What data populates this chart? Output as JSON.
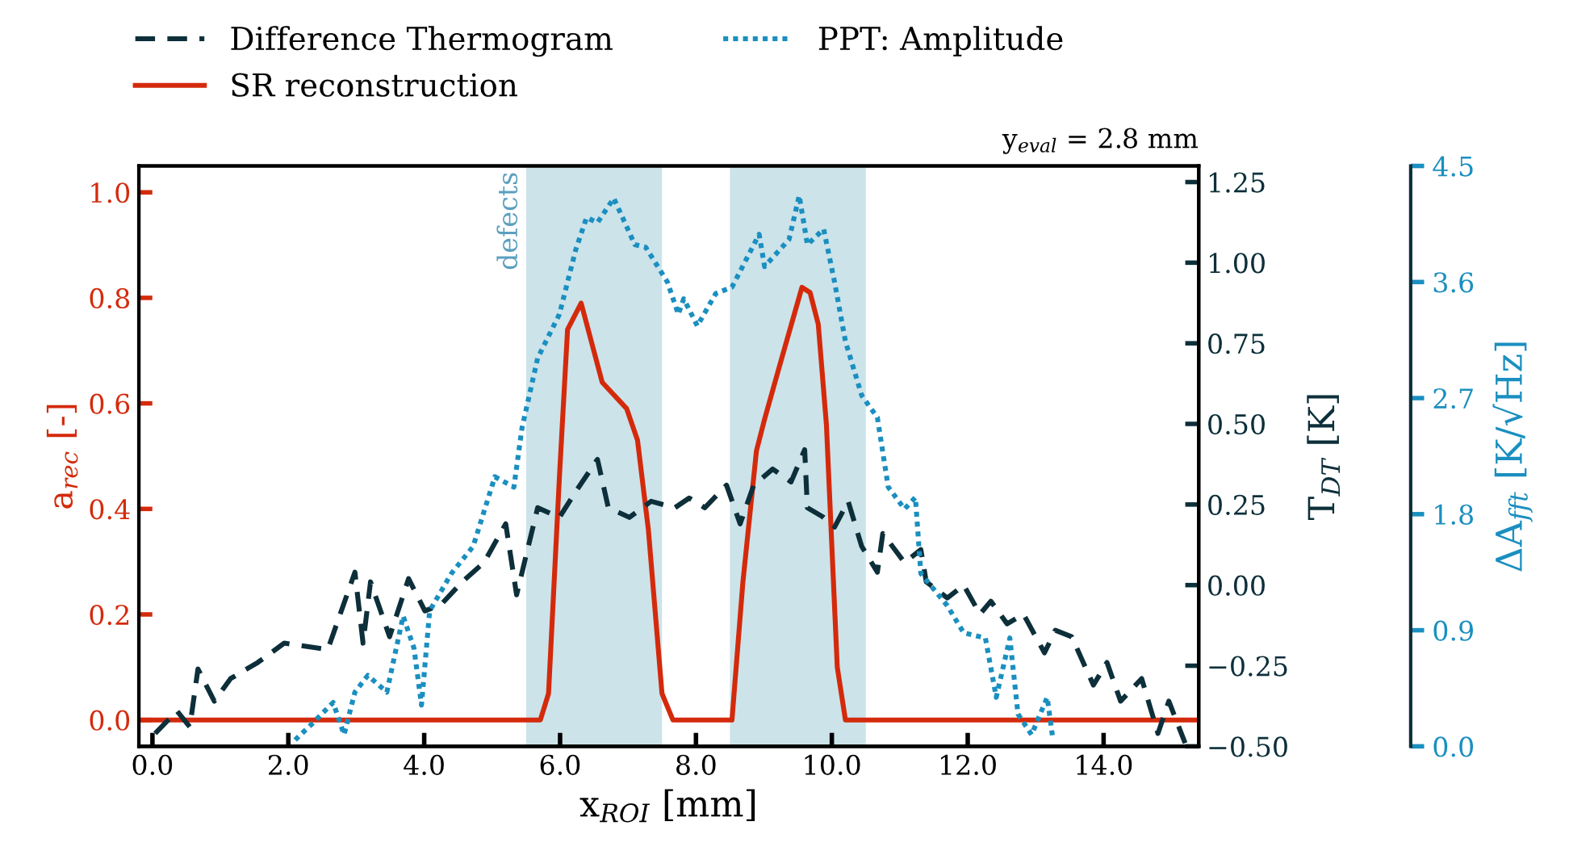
{
  "chart_data": {
    "type": "line",
    "xlabel": "x$_{ROI}$ [mm]",
    "ylabel": "a$_{rec}$ [-]",
    "y2label": "T$_{DT}$ [K]",
    "y3label": "ΔA$_{fft}$ [K/√Hz]",
    "annotations": [
      "y$_{eval}$ = 2.8 mm"
    ],
    "legend": "top",
    "xlim": [
      -0.2,
      15.4
    ],
    "xticks": [
      {
        "value": 0,
        "label": "0.0"
      },
      {
        "value": 2,
        "label": "2.0"
      },
      {
        "value": 4,
        "label": "4.0"
      },
      {
        "value": 6,
        "label": "6.0"
      },
      {
        "value": 8,
        "label": "8.0"
      },
      {
        "value": 10,
        "label": "10.0"
      },
      {
        "value": 12,
        "label": "12.0"
      },
      {
        "value": 14,
        "label": "14.0"
      }
    ],
    "ylim": [
      -0.05,
      1.05
    ],
    "yticks": [
      {
        "value": 0,
        "label": "0.0"
      },
      {
        "value": 0.2,
        "label": "0.2"
      },
      {
        "value": 0.4,
        "label": "0.4"
      },
      {
        "value": 0.6,
        "label": "0.6"
      },
      {
        "value": 0.8,
        "label": "0.8"
      },
      {
        "value": 1.0,
        "label": "1.0"
      }
    ],
    "y2lim": [
      -0.5,
      1.3
    ],
    "y2ticks": [
      {
        "value": -0.5,
        "label": "−0.50"
      },
      {
        "value": -0.25,
        "label": "−0.25"
      },
      {
        "value": 0,
        "label": "0.00"
      },
      {
        "value": 0.25,
        "label": "0.25"
      },
      {
        "value": 0.5,
        "label": "0.50"
      },
      {
        "value": 0.75,
        "label": "0.75"
      },
      {
        "value": 1.0,
        "label": "1.00"
      },
      {
        "value": 1.25,
        "label": "1.25"
      }
    ],
    "y3lim": [
      0,
      4.5
    ],
    "y3ticks": [
      {
        "value": 0,
        "label": "0.0"
      },
      {
        "value": 0.9,
        "label": "0.9"
      },
      {
        "value": 1.8,
        "label": "1.8"
      },
      {
        "value": 2.7,
        "label": "2.7"
      },
      {
        "value": 3.6,
        "label": "3.6"
      },
      {
        "value": 4.5,
        "label": "4.5"
      }
    ],
    "bands": [
      {
        "axis": "x",
        "from": 5.5,
        "to": 7.5,
        "label": "defects",
        "color": "#cce3ea"
      },
      {
        "axis": "x",
        "from": 8.5,
        "to": 10.5,
        "label": null,
        "color": "#cce3ea"
      }
    ],
    "series": [
      {
        "name": "Difference Thermogram",
        "color": "#0d2f3a",
        "axis": "y2",
        "line_style": "dashed",
        "x": [
          0.04,
          0.36,
          0.55,
          0.67,
          0.91,
          1.15,
          1.55,
          1.94,
          2.26,
          2.58,
          2.98,
          3.1,
          3.21,
          3.49,
          3.77,
          4.01,
          4.25,
          4.56,
          4.88,
          5.2,
          5.36,
          5.67,
          5.99,
          6.23,
          6.55,
          6.71,
          7.02,
          7.34,
          7.69,
          7.9,
          8.13,
          8.45,
          8.65,
          8.85,
          9.13,
          9.4,
          9.6,
          9.64,
          9.88,
          10.04,
          10.24,
          10.44,
          10.67,
          10.75,
          11.07,
          11.31,
          11.39,
          11.7,
          11.94,
          12.18,
          12.34,
          12.58,
          12.82,
          13.13,
          13.29,
          13.53,
          13.85,
          14.05,
          14.25,
          14.56,
          14.8,
          14.96,
          15.2
        ],
        "values": [
          -0.46,
          -0.39,
          -0.44,
          -0.26,
          -0.36,
          -0.29,
          -0.24,
          -0.18,
          -0.19,
          -0.2,
          0.04,
          -0.18,
          0.01,
          -0.16,
          0.02,
          -0.08,
          -0.06,
          0.01,
          0.07,
          0.19,
          -0.03,
          0.24,
          0.21,
          0.29,
          0.39,
          0.24,
          0.21,
          0.26,
          0.24,
          0.27,
          0.24,
          0.31,
          0.19,
          0.31,
          0.36,
          0.32,
          0.42,
          0.24,
          0.21,
          0.18,
          0.26,
          0.12,
          0.04,
          0.16,
          0.07,
          0.11,
          0.01,
          -0.04,
          0.0,
          -0.09,
          -0.05,
          -0.12,
          -0.09,
          -0.21,
          -0.14,
          -0.16,
          -0.31,
          -0.24,
          -0.36,
          -0.29,
          -0.46,
          -0.36,
          -0.49
        ]
      },
      {
        "name": "SR reconstruction",
        "color": "#d42a0c",
        "line_style": "solid",
        "x": [
          -0.2,
          5.71,
          5.83,
          5.99,
          6.11,
          6.31,
          6.62,
          6.98,
          7.14,
          7.3,
          7.5,
          7.66,
          8.53,
          8.69,
          8.89,
          9.01,
          9.25,
          9.56,
          9.68,
          9.8,
          9.92,
          10.08,
          10.2,
          15.4
        ],
        "values": [
          0,
          0,
          0.05,
          0.46,
          0.74,
          0.79,
          0.64,
          0.59,
          0.53,
          0.36,
          0.05,
          0,
          0,
          0.26,
          0.51,
          0.57,
          0.68,
          0.82,
          0.81,
          0.75,
          0.56,
          0.1,
          0,
          0
        ]
      },
      {
        "name": "PPT: Amplitude",
        "color": "#1a8fc0",
        "axis": "y3",
        "line_style": "dotted",
        "x": [
          2.1,
          2.34,
          2.66,
          2.82,
          2.98,
          3.17,
          3.45,
          3.69,
          3.85,
          3.96,
          4.08,
          4.4,
          4.72,
          5.04,
          5.32,
          5.44,
          5.67,
          5.99,
          6.23,
          6.39,
          6.55,
          6.79,
          7.1,
          7.26,
          7.58,
          7.74,
          7.82,
          8.02,
          8.29,
          8.53,
          8.93,
          9.01,
          9.37,
          9.52,
          9.64,
          9.88,
          10.04,
          10.2,
          10.44,
          10.67,
          10.83,
          11.07,
          11.23,
          11.31,
          11.7,
          11.94,
          12.26,
          12.42,
          12.62,
          12.74,
          12.94,
          13.17,
          13.25
        ],
        "values": [
          0.05,
          0.17,
          0.34,
          0.09,
          0.42,
          0.55,
          0.42,
          1.01,
          0.76,
          0.32,
          1.05,
          1.34,
          1.55,
          2.09,
          2.01,
          2.47,
          3.01,
          3.35,
          3.85,
          4.1,
          4.06,
          4.25,
          3.89,
          3.87,
          3.6,
          3.35,
          3.47,
          3.26,
          3.51,
          3.56,
          3.97,
          3.72,
          3.93,
          4.27,
          3.89,
          4.01,
          3.6,
          3.14,
          2.72,
          2.55,
          2.01,
          1.84,
          1.93,
          1.34,
          1.09,
          0.88,
          0.84,
          0.38,
          0.84,
          0.25,
          0.09,
          0.38,
          0.07
        ]
      }
    ]
  }
}
